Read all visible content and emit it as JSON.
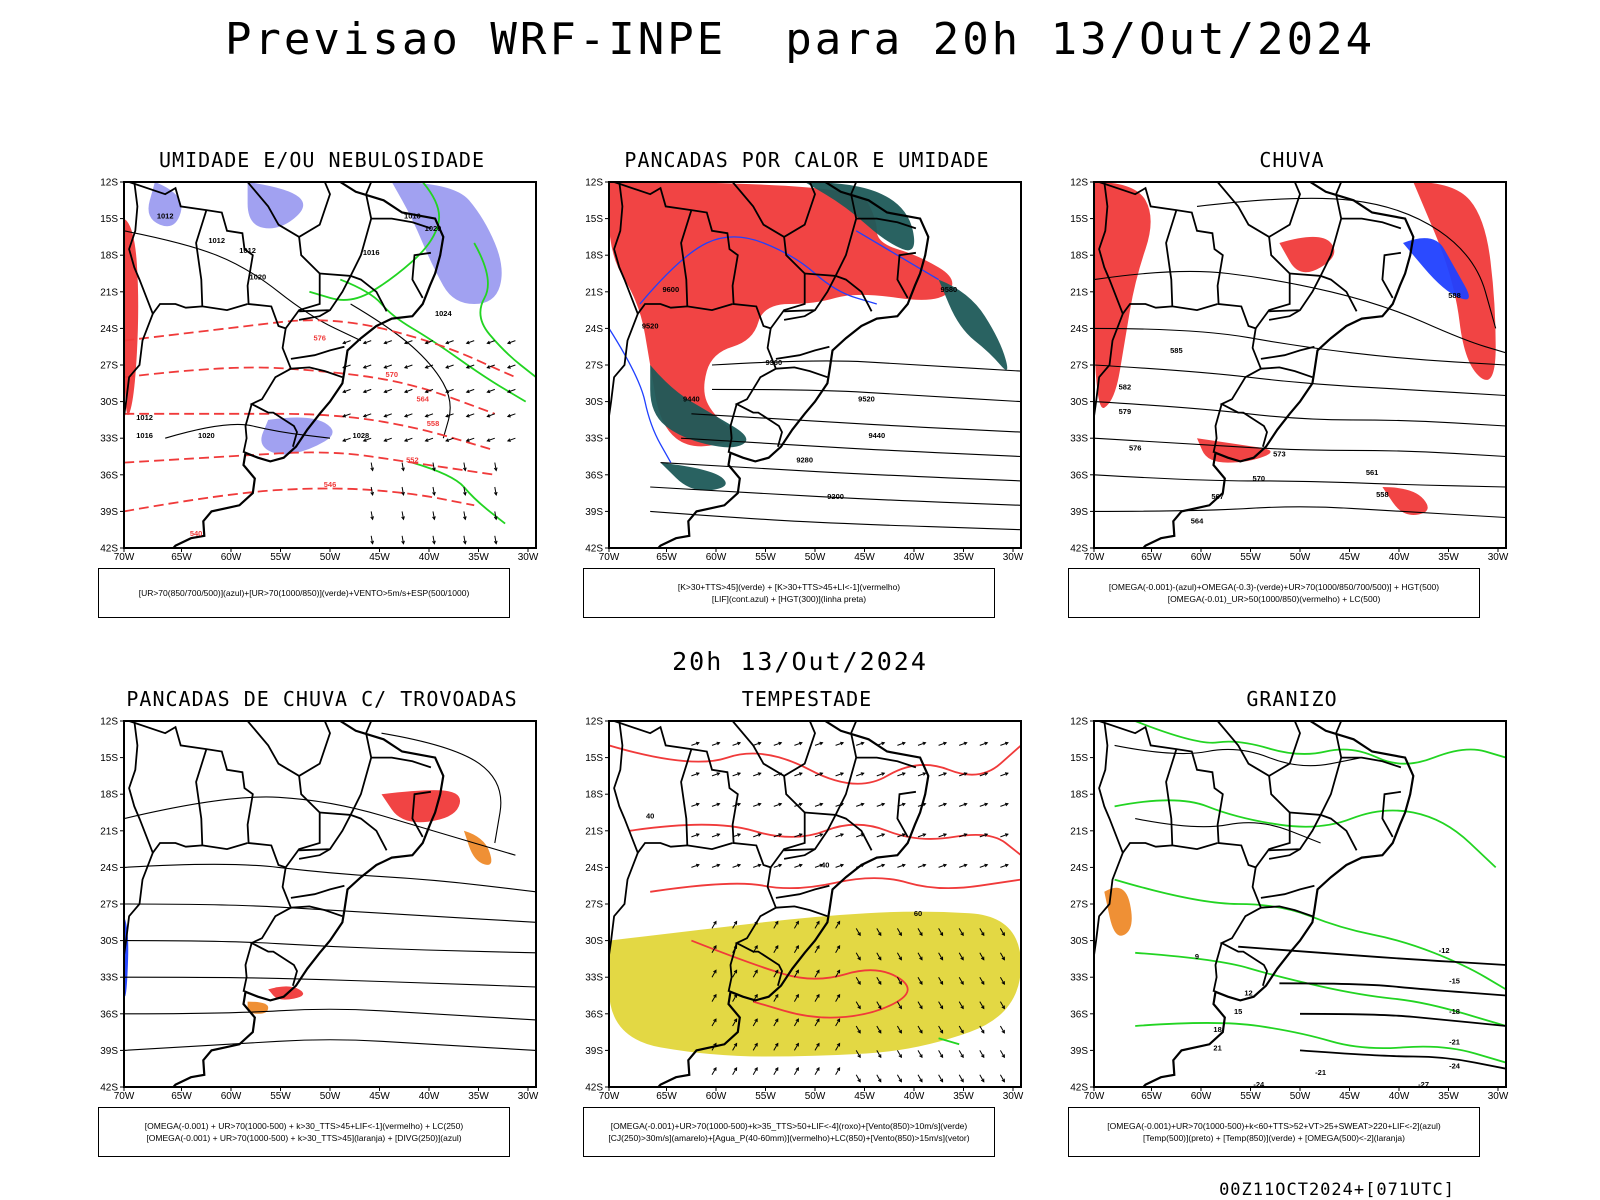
{
  "title": "Previsao WRF-INPE  para 20h 13/Out/2024",
  "mid_date": "20h 13/Out/2024",
  "footer": "00Z11OCT2024+[071UTC]",
  "axes": {
    "lat_labels": [
      "12S",
      "15S",
      "18S",
      "21S",
      "24S",
      "27S",
      "30S",
      "33S",
      "36S",
      "39S",
      "42S"
    ],
    "lon_labels": [
      "70W",
      "65W",
      "60W",
      "55W",
      "50W",
      "45W",
      "40W",
      "35W",
      "30W"
    ]
  },
  "colors": {
    "red": "#f03a3a",
    "green": "#22d422",
    "blue": "#2040ff",
    "lavender": "#9c9cf0",
    "dark_teal": "#1e5a58",
    "yellow": "#e2d63a",
    "orange": "#ee8a2a"
  },
  "panels": [
    {
      "title": "UMIDADE E/OU NEBULOSIDADE",
      "legend": [
        "[UR>70(850/700/500)](azul)+[UR>70(1000/850)](verde)+VENTO>5m/s+ESP(500/1000)"
      ],
      "contour_labels": [
        "1012",
        "1012",
        "1012",
        "1016",
        "1016",
        "1020",
        "1020",
        "1024",
        "1028",
        "1016",
        "1020",
        "1012",
        "576",
        "570",
        "564",
        "558",
        "552",
        "546",
        "540"
      ]
    },
    {
      "title": "PANCADAS POR CALOR E UMIDADE",
      "legend": [
        "[K>30+TTS>45](verde) + [K>30+TTS>45+LI<-1](vermelho)",
        "[LIF](cont.azul) + [HGT(300)](linha preta)"
      ],
      "contour_labels": [
        "9600",
        "9520",
        "9440",
        "9360",
        "9280",
        "9200",
        "9600",
        "9520",
        "9440",
        "9580"
      ]
    },
    {
      "title": "CHUVA",
      "legend": [
        "[OMEGA(-0.001)-(azul)+OMEGA(-0.3)-(verde)+UR>70(1000/850/700/500)] + HGT(500)",
        "[OMEGA(-0.01)_UR>50(1000/850)(vermelho) + LC(500)"
      ],
      "contour_labels": [
        "588",
        "585",
        "582",
        "579",
        "576",
        "573",
        "570",
        "567",
        "564",
        "561",
        "558"
      ]
    },
    {
      "title": "PANCADAS DE CHUVA C/ TROVOADAS",
      "legend": [
        "[OMEGA(-0.001) + UR>70(1000-500) + k>30_TTS>45+LIF<-1](vermelho) + LC(250)",
        "[OMEGA(-0.001) + UR>70(1000-500) + k>30_TTS>45](laranja) + [DIVG(250)](azul)"
      ],
      "contour_labels": []
    },
    {
      "title": "TEMPESTADE",
      "legend": [
        "[OMEGA(-0.001)+UR>70(1000-500)+k>35_TTS>50+LIF<-4](roxo)+[Vento(850)>10m/s](verde)",
        "[CJ(250)>30m/s](amarelo)+[Agua_P(40-60mm)](vermelho)+LC(850)+[Vento(850)>15m/s](vetor)"
      ],
      "contour_labels": [
        "40",
        "40",
        "60"
      ]
    },
    {
      "title": "GRANIZO",
      "legend": [
        "[OMEGA(-0.001)+UR>70(1000-500)+k<60+TTS>52+VT>25+SWEAT>220+LIF<-2](azul)",
        "[Temp(500)](preto) + [Temp(850)](verde) + [OMEGA(500)<-2](laranja)"
      ],
      "contour_labels": [
        "-12",
        "-15",
        "-18",
        "-21",
        "-24",
        "-27",
        "-24",
        "-21",
        "9",
        "12",
        "15",
        "18",
        "21"
      ]
    }
  ]
}
